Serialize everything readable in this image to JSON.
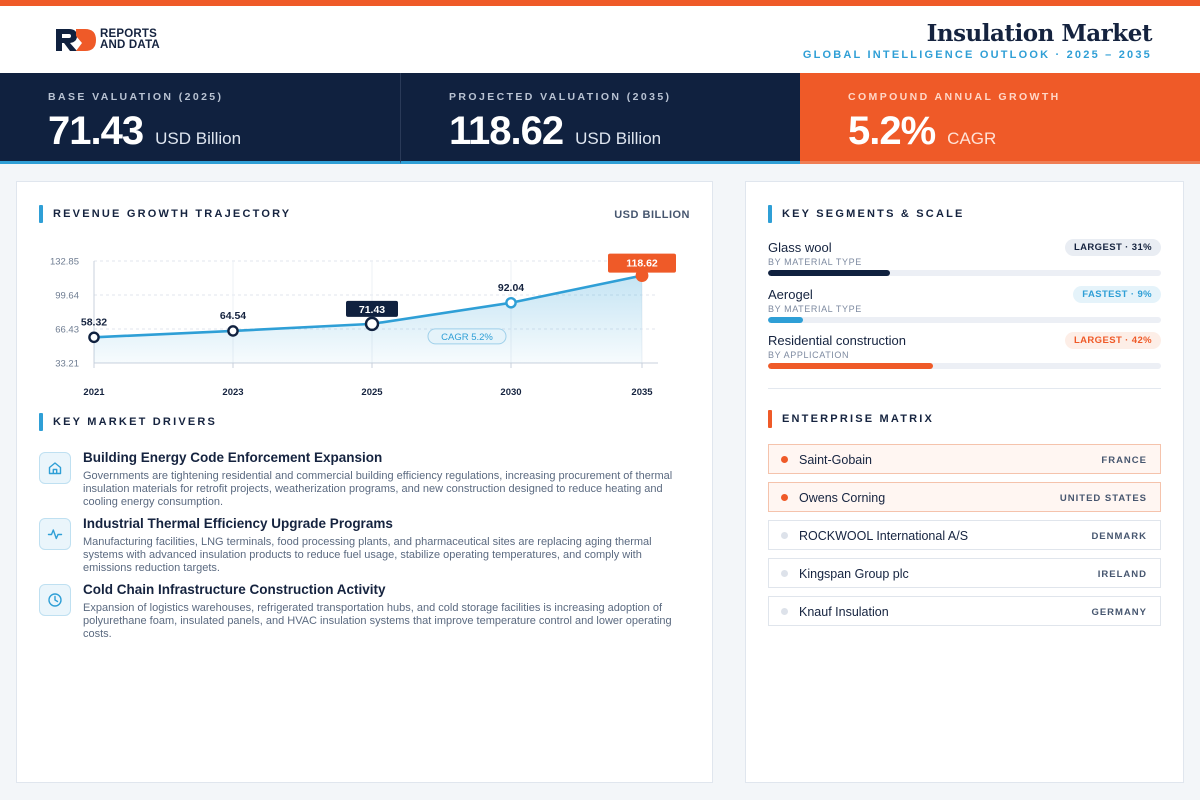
{
  "brand": {
    "line1": "REPORTS",
    "line2": "AND DATA"
  },
  "header": {
    "title": "Insulation Market",
    "subtitle": "GLOBAL INTELLIGENCE OUTLOOK  ·  2025 – 2035"
  },
  "kpis": [
    {
      "label": "BASE VALUATION (2025)",
      "value": "71.43",
      "unit": "USD Billion"
    },
    {
      "label": "PROJECTED VALUATION (2035)",
      "value": "118.62",
      "unit": "USD Billion"
    },
    {
      "label": "COMPOUND ANNUAL GROWTH",
      "value": "5.2%",
      "unit": "CAGR"
    }
  ],
  "revenue": {
    "title": "REVENUE GROWTH TRAJECTORY",
    "unit_label": "USD BILLION"
  },
  "chart_data": {
    "type": "area",
    "title": "REVENUE GROWTH TRAJECTORY",
    "ylabel": "USD BILLION",
    "categories": [
      "2021",
      "2023",
      "2025",
      "2030",
      "2035"
    ],
    "values": [
      58.32,
      64.54,
      71.43,
      92.04,
      118.62
    ],
    "value_labels": [
      "58.32",
      "64.54",
      "71.43",
      "92.04",
      "118.62"
    ],
    "y_ticks": [
      "132.85",
      "99.64",
      "66.43",
      "33.21"
    ],
    "ylim": [
      33.21,
      132.85
    ],
    "annotation": "CAGR 5.2%",
    "grid": true,
    "colors": {
      "line": "#2f9fd6",
      "highlight_base": "#10213f",
      "highlight_end": "#ef5a28"
    }
  },
  "drivers": {
    "title": "KEY MARKET DRIVERS",
    "items": [
      {
        "icon": "home-icon",
        "title": "Building Energy Code Enforcement Expansion",
        "desc": "Governments are tightening residential and commercial building efficiency regulations, increasing procurement of thermal insulation materials for retrofit projects, weatherization programs, and new construction designed to reduce heating and cooling energy consumption."
      },
      {
        "icon": "activity-icon",
        "title": "Industrial Thermal Efficiency Upgrade Programs",
        "desc": "Manufacturing facilities, LNG terminals, food processing plants, and pharmaceutical sites are replacing aging thermal systems with advanced insulation products to reduce fuel usage, stabilize operating temperatures, and comply with emissions reduction targets."
      },
      {
        "icon": "clock-icon",
        "title": "Cold Chain Infrastructure Construction Activity",
        "desc": "Expansion of logistics warehouses, refrigerated transportation hubs, and cold storage facilities is increasing adoption of polyurethane foam, insulated panels, and HVAC insulation systems that improve temperature control and lower operating costs."
      }
    ]
  },
  "segments": {
    "title": "KEY SEGMENTS & SCALE",
    "items": [
      {
        "name": "Glass wool",
        "category": "BY MATERIAL TYPE",
        "badge": "LARGEST · 31%",
        "share": 0.31,
        "color": "#10213f",
        "badge_bg": "#e9edf3",
        "badge_fg": "#15233f"
      },
      {
        "name": "Aerogel",
        "category": "BY MATERIAL TYPE",
        "badge": "FASTEST · 9%",
        "share": 0.09,
        "color": "#2f9fd6",
        "badge_bg": "#e5f3fa",
        "badge_fg": "#2f9fd6"
      },
      {
        "name": "Residential construction",
        "category": "BY APPLICATION",
        "badge": "LARGEST · 42%",
        "share": 0.42,
        "color": "#ef5a28",
        "badge_bg": "#fdeee7",
        "badge_fg": "#ef5a28"
      }
    ]
  },
  "enterprise": {
    "title": "ENTERPRISE MATRIX",
    "items": [
      {
        "name": "Saint-Gobain",
        "country": "FRANCE",
        "highlight": true
      },
      {
        "name": "Owens Corning",
        "country": "UNITED STATES",
        "highlight": true
      },
      {
        "name": "ROCKWOOL International A/S",
        "country": "DENMARK",
        "highlight": false
      },
      {
        "name": "Kingspan Group plc",
        "country": "IRELAND",
        "highlight": false
      },
      {
        "name": "Knauf Insulation",
        "country": "GERMANY",
        "highlight": false
      }
    ]
  }
}
